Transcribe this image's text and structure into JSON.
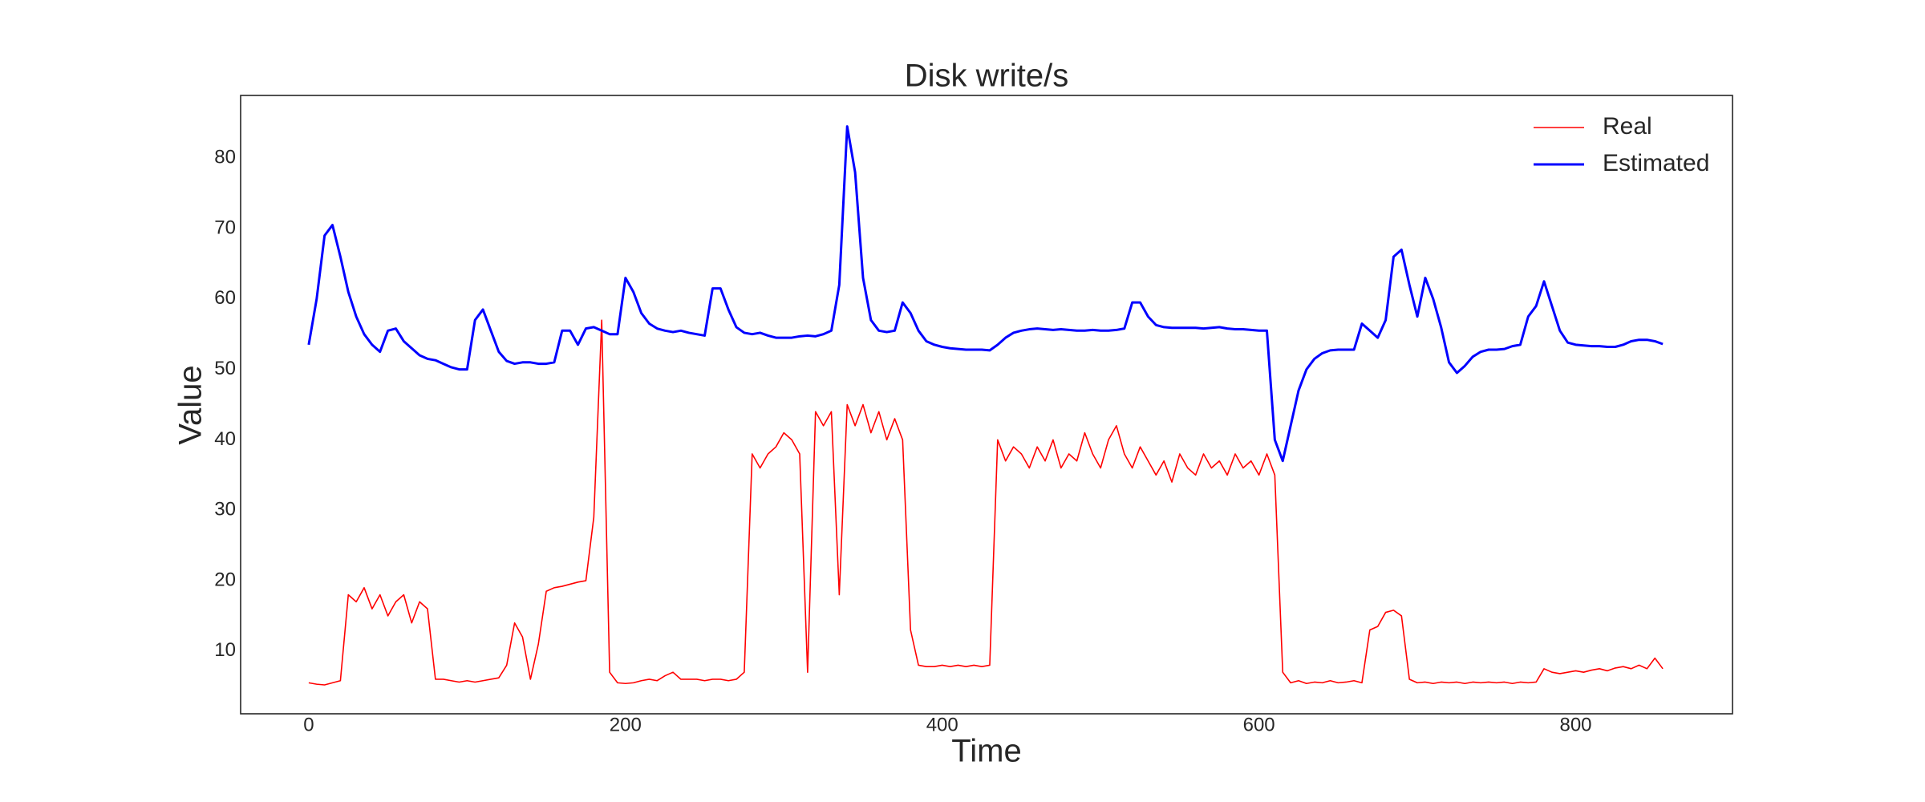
{
  "chart_data": {
    "type": "line",
    "title": "Disk write/s",
    "xlabel": "Time",
    "ylabel": "Value",
    "x": [
      0,
      5,
      10,
      15,
      20,
      25,
      30,
      35,
      40,
      45,
      50,
      55,
      60,
      65,
      70,
      75,
      80,
      85,
      90,
      95,
      100,
      105,
      110,
      115,
      120,
      125,
      130,
      135,
      140,
      145,
      150,
      155,
      160,
      165,
      170,
      175,
      180,
      185,
      190,
      195,
      200,
      205,
      210,
      215,
      220,
      225,
      230,
      235,
      240,
      245,
      250,
      255,
      260,
      265,
      270,
      275,
      280,
      285,
      290,
      295,
      300,
      305,
      310,
      315,
      320,
      325,
      330,
      335,
      340,
      345,
      350,
      355,
      360,
      365,
      370,
      375,
      380,
      385,
      390,
      395,
      400,
      405,
      410,
      415,
      420,
      425,
      430,
      435,
      440,
      445,
      450,
      455,
      460,
      465,
      470,
      475,
      480,
      485,
      490,
      495,
      500,
      505,
      510,
      515,
      520,
      525,
      530,
      535,
      540,
      545,
      550,
      555,
      560,
      565,
      570,
      575,
      580,
      585,
      590,
      595,
      600,
      605,
      610,
      615,
      620,
      625,
      630,
      635,
      640,
      645,
      650,
      655,
      660,
      665,
      670,
      675,
      680,
      685,
      690,
      695,
      700,
      705,
      710,
      715,
      720,
      725,
      730,
      735,
      740,
      745,
      750,
      755,
      760,
      765,
      770,
      775,
      780,
      785,
      790,
      795,
      800,
      805,
      810,
      815,
      820,
      825,
      830,
      835,
      840,
      845,
      850,
      855
    ],
    "series": [
      {
        "name": "Real",
        "color": "#ff0000",
        "values": [
          5.5,
          5.3,
          5.2,
          5.5,
          5.8,
          18,
          17,
          19,
          16,
          18,
          15,
          17,
          18,
          14,
          17,
          16,
          6,
          6,
          5.8,
          5.6,
          5.8,
          5.6,
          5.8,
          6,
          6.2,
          8,
          14,
          12,
          6,
          11,
          18.5,
          19,
          19.2,
          19.5,
          19.8,
          20,
          29,
          57,
          7,
          5.5,
          5.4,
          5.5,
          5.8,
          6,
          5.8,
          6.5,
          7,
          6,
          6,
          6,
          5.8,
          6,
          6,
          5.8,
          6,
          7,
          38,
          36,
          38,
          39,
          41,
          40,
          38,
          7,
          44,
          42,
          44,
          18,
          45,
          42,
          45,
          41,
          44,
          40,
          43,
          40,
          13,
          8,
          7.8,
          7.8,
          8,
          7.8,
          8,
          7.8,
          8,
          7.8,
          8,
          40,
          37,
          39,
          38,
          36,
          39,
          37,
          40,
          36,
          38,
          37,
          41,
          38,
          36,
          40,
          42,
          38,
          36,
          39,
          37,
          35,
          37,
          34,
          38,
          36,
          35,
          38,
          36,
          37,
          35,
          38,
          36,
          37,
          35,
          38,
          35,
          7,
          5.5,
          5.8,
          5.4,
          5.6,
          5.5,
          5.8,
          5.5,
          5.6,
          5.8,
          5.5,
          13,
          13.5,
          15.5,
          15.8,
          15,
          6,
          5.5,
          5.6,
          5.4,
          5.6,
          5.5,
          5.6,
          5.4,
          5.6,
          5.5,
          5.6,
          5.5,
          5.6,
          5.4,
          5.6,
          5.5,
          5.6,
          7.5,
          7,
          6.8,
          7,
          7.2,
          7,
          7.3,
          7.5,
          7.2,
          7.6,
          7.8,
          7.5,
          8,
          7.5,
          9,
          7.5
        ]
      },
      {
        "name": "Estimated",
        "color": "#0000ff",
        "values": [
          53.5,
          60,
          69,
          70.5,
          66,
          61,
          57.5,
          55,
          53.5,
          52.5,
          55.5,
          55.8,
          54,
          53,
          52,
          51.5,
          51.3,
          50.8,
          50.3,
          50,
          50,
          57,
          58.5,
          55.5,
          52.5,
          51.2,
          50.8,
          51,
          51,
          50.8,
          50.8,
          51,
          55.5,
          55.5,
          53.5,
          55.8,
          56,
          55.5,
          55,
          55,
          63,
          61,
          58,
          56.5,
          55.8,
          55.5,
          55.3,
          55.5,
          55.2,
          55,
          54.8,
          61.5,
          61.5,
          58.5,
          56,
          55.2,
          55,
          55.2,
          54.8,
          54.5,
          54.5,
          54.5,
          54.7,
          54.8,
          54.7,
          55,
          55.5,
          62,
          84.5,
          78,
          63,
          57,
          55.5,
          55.3,
          55.5,
          59.5,
          58,
          55.5,
          54,
          53.5,
          53.2,
          53,
          52.9,
          52.8,
          52.8,
          52.8,
          52.7,
          53.5,
          54.5,
          55.2,
          55.5,
          55.7,
          55.8,
          55.7,
          55.6,
          55.7,
          55.6,
          55.5,
          55.5,
          55.6,
          55.5,
          55.5,
          55.6,
          55.8,
          59.5,
          59.5,
          57.5,
          56.3,
          56,
          55.9,
          55.9,
          55.9,
          55.9,
          55.8,
          55.9,
          56,
          55.8,
          55.7,
          55.7,
          55.6,
          55.5,
          55.5,
          40,
          37,
          42,
          47,
          50,
          51.5,
          52.3,
          52.7,
          52.8,
          52.8,
          52.8,
          56.5,
          55.5,
          54.5,
          57,
          66,
          67,
          62,
          57.5,
          63,
          60,
          56,
          51,
          49.5,
          50.5,
          51.8,
          52.5,
          52.8,
          52.8,
          52.9,
          53.3,
          53.5,
          57.5,
          59,
          62.5,
          59,
          55.5,
          53.8,
          53.5,
          53.4,
          53.3,
          53.3,
          53.2,
          53.2,
          53.5,
          54,
          54.2,
          54.2,
          54,
          53.6
        ]
      }
    ],
    "xlim": [
      -43,
      899
    ],
    "ylim": [
      1.1,
      88.9
    ],
    "xticks": [
      0,
      200,
      400,
      600,
      800
    ],
    "yticks": [
      10,
      20,
      30,
      40,
      50,
      60,
      70,
      80
    ],
    "grid": false,
    "legend": "upper right"
  }
}
